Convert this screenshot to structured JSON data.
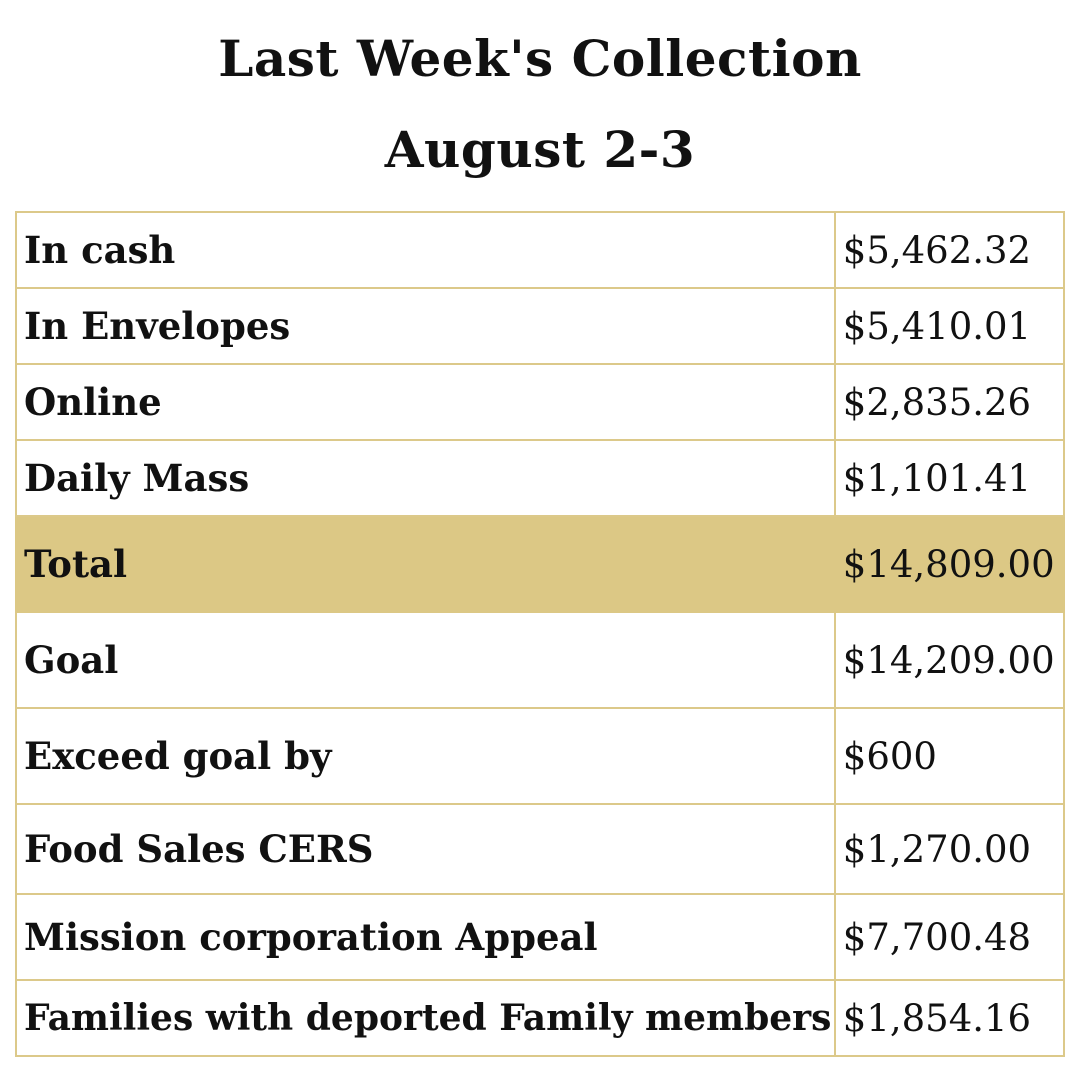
{
  "header": {
    "title": "Last Week's Collection",
    "subtitle": "August 2-3"
  },
  "colors": {
    "border": "#dcc98a",
    "highlight_fill": "#dcc885"
  },
  "rows": [
    {
      "label": "In cash",
      "amount": "$5,462.32",
      "highlight": false
    },
    {
      "label": "In Envelopes",
      "amount": "$5,410.01",
      "highlight": false
    },
    {
      "label": "Online",
      "amount": "$2,835.26",
      "highlight": false
    },
    {
      "label": "Daily Mass",
      "amount": "$1,101.41",
      "highlight": false
    },
    {
      "label": "Total",
      "amount": "$14,809.00",
      "highlight": true
    },
    {
      "label": "Goal",
      "amount": "$14,209.00",
      "highlight": false
    },
    {
      "label": "Exceed goal by",
      "amount": "$600",
      "highlight": false
    },
    {
      "label": "Food Sales CERS",
      "amount": "$1,270.00",
      "highlight": false
    },
    {
      "label": "Mission corporation Appeal",
      "amount": "$7,700.48",
      "highlight": false
    },
    {
      "label": "Families with deported Family members",
      "amount": "$1,854.16",
      "highlight": false
    }
  ]
}
